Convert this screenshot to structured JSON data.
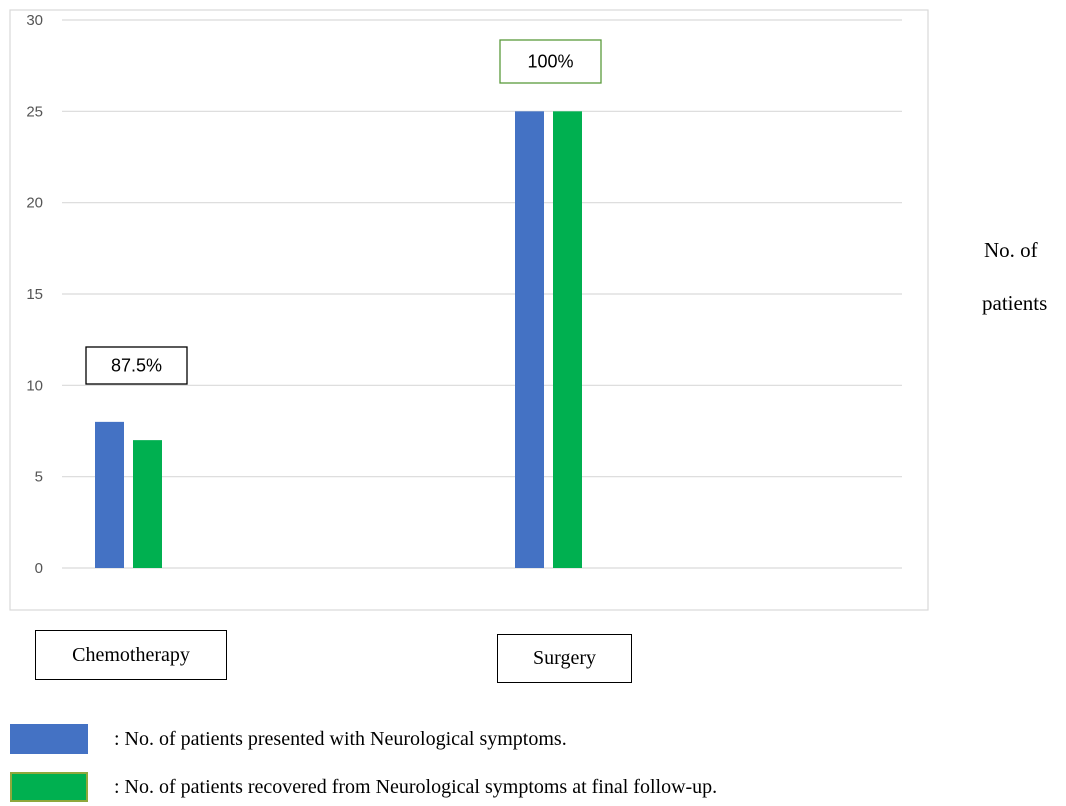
{
  "chart_data": {
    "type": "bar",
    "categories": [
      "Chemotherapy",
      "Surgery"
    ],
    "series": [
      {
        "name": ": No. of patients presented with Neurological symptoms.",
        "values": [
          8,
          25
        ],
        "color": "#4472c4"
      },
      {
        "name": ": No. of patients recovered from Neurological symptoms at final follow-up.",
        "values": [
          7,
          25
        ],
        "color": "#00b050"
      }
    ],
    "annotations": [
      "87.5%",
      "100%"
    ],
    "ylabel_line1": "No. of",
    "ylabel_line2": "patients",
    "ylim": [
      0,
      30
    ],
    "yticks": [
      0,
      5,
      10,
      15,
      20,
      25,
      30
    ],
    "grid": true,
    "legend_position": "bottom-left"
  }
}
